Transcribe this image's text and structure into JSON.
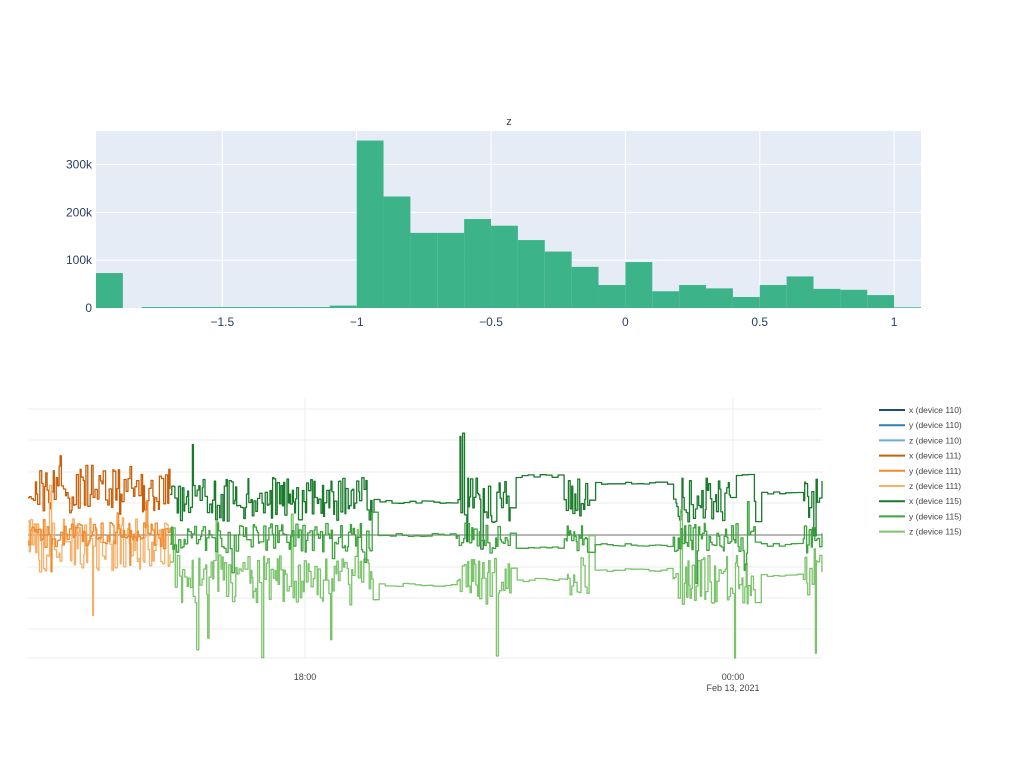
{
  "chart_data": [
    {
      "type": "bar",
      "title": "z",
      "xlabel": "",
      "ylabel": "",
      "xlim": [
        -1.97,
        1.1
      ],
      "ylim": [
        0,
        370000
      ],
      "bar_color": "#3db38a",
      "background": "#e5ecf6",
      "x_ticks": [
        "−1.5",
        "−1",
        "−0.5",
        "0",
        "0.5",
        "1"
      ],
      "x_tick_values": [
        -1.5,
        -1,
        -0.5,
        0,
        0.5,
        1
      ],
      "y_ticks": [
        "0",
        "100k",
        "200k",
        "300k"
      ],
      "y_tick_values": [
        0,
        100000,
        200000,
        300000
      ],
      "bin_width": 0.1,
      "bin_starts": [
        -1.97,
        -1.9,
        -1.8,
        -1.7,
        -1.6,
        -1.5,
        -1.4,
        -1.3,
        -1.2,
        -1.1,
        -1.0,
        -0.9,
        -0.8,
        -0.7,
        -0.6,
        -0.5,
        -0.4,
        -0.3,
        -0.2,
        -0.1,
        0.0,
        0.1,
        0.2,
        0.3,
        0.4,
        0.5,
        0.6,
        0.7,
        0.8,
        0.9,
        1.0
      ],
      "values": [
        73000,
        0,
        2000,
        2000,
        2000,
        2000,
        2000,
        2000,
        2000,
        5000,
        350000,
        233000,
        157000,
        157000,
        186000,
        172000,
        142000,
        118000,
        86000,
        48000,
        96000,
        35000,
        48000,
        41000,
        23000,
        48000,
        66000,
        40000,
        38000,
        27000,
        1500
      ]
    },
    {
      "type": "line",
      "title": "",
      "xlabel": "",
      "ylabel": "",
      "x_ticks": [
        "18:00",
        "00:00"
      ],
      "x_tick_sublabels": [
        "",
        "Feb 13, 2021"
      ],
      "legend_position": "right",
      "series": [
        {
          "name": "x (device 110)",
          "color": "#1f4e79"
        },
        {
          "name": "y (device 110)",
          "color": "#2c7fb8"
        },
        {
          "name": "z (device 110)",
          "color": "#6baed6"
        },
        {
          "name": "x (device 111)",
          "color": "#c8600a"
        },
        {
          "name": "y (device 111)",
          "color": "#f08a2e"
        },
        {
          "name": "z (device 111)",
          "color": "#f5b06a"
        },
        {
          "name": "x (device 115)",
          "color": "#1a7a2c"
        },
        {
          "name": "y (device 115)",
          "color": "#3ea33e"
        },
        {
          "name": "z (device 115)",
          "color": "#7cc46c"
        }
      ]
    }
  ]
}
